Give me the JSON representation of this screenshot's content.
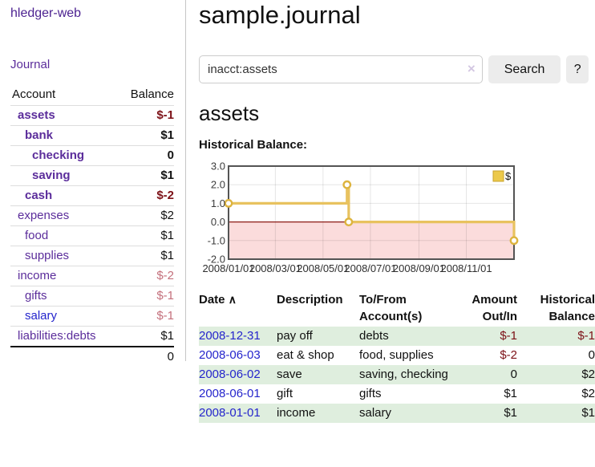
{
  "app": {
    "title": "hledger-web"
  },
  "sidebar": {
    "nav_journal": "Journal",
    "table": {
      "account_header": "Account",
      "balance_header": "Balance",
      "rows": [
        {
          "account": "assets",
          "balance": "$-1"
        },
        {
          "account": "bank",
          "balance": "$1"
        },
        {
          "account": "checking",
          "balance": "0"
        },
        {
          "account": "saving",
          "balance": "$1"
        },
        {
          "account": "cash",
          "balance": "$-2"
        },
        {
          "account": "expenses",
          "balance": "$2"
        },
        {
          "account": "food",
          "balance": "$1"
        },
        {
          "account": "supplies",
          "balance": "$1"
        },
        {
          "account": "income",
          "balance": "$-2"
        },
        {
          "account": "gifts",
          "balance": "$-1"
        },
        {
          "account": "salary",
          "balance": "$-1"
        },
        {
          "account": "liabilities:debts",
          "balance": "$1"
        }
      ],
      "total": "0"
    }
  },
  "main": {
    "title": "sample.journal",
    "search": {
      "value": "inacct:assets",
      "clear_icon": "×",
      "search_button": "Search",
      "help_button": "?"
    },
    "account_heading": "assets",
    "chart_heading": "Historical Balance:"
  },
  "chart_data": {
    "type": "line",
    "step": true,
    "title": "Historical Balance:",
    "ylim": [
      -2,
      3
    ],
    "yticks": [
      {
        "v": 3,
        "label": "3.0"
      },
      {
        "v": 2,
        "label": "2.0"
      },
      {
        "v": 1,
        "label": "1.0"
      },
      {
        "v": 0,
        "label": "0.0"
      },
      {
        "v": -1,
        "label": "-1.0"
      },
      {
        "v": -2,
        "label": "-2.0"
      }
    ],
    "xticks": [
      {
        "f": 0,
        "label": "2008/01/01"
      },
      {
        "f": 0.164,
        "label": "2008/03/01"
      },
      {
        "f": 0.331,
        "label": "2008/05/01"
      },
      {
        "f": 0.497,
        "label": "2008/07/01"
      },
      {
        "f": 0.667,
        "label": "2008/09/01"
      },
      {
        "f": 0.833,
        "label": "2008/11/01"
      }
    ],
    "series": [
      {
        "name": "$",
        "points": [
          {
            "date": "2008-01-01",
            "f": 0,
            "v": 1
          },
          {
            "date": "2008-06-01",
            "f": 0.415,
            "v": 2
          },
          {
            "date": "2008-06-03",
            "f": 0.421,
            "v": 0
          },
          {
            "date": "2008-12-31",
            "f": 1,
            "v": -1
          }
        ]
      }
    ],
    "legend": {
      "position": "top-right",
      "label": "$"
    },
    "colors": {
      "line": "#e8c25f",
      "marker_ring": "#ddb43f",
      "negative_fill": "#fbdcdc",
      "zero_line": "#8c1a15",
      "border": "#545454",
      "grid": "rgba(0,0,0,0.10)",
      "legend_swatch": "#ecc94b",
      "legend_swatch_border": "#c9a32e"
    }
  },
  "register": {
    "headers": {
      "date": "Date",
      "sort_icon": "∧",
      "description": "Description",
      "account": "To/From Account(s)",
      "amount": "Amount Out/In",
      "balance": "Historical Balance"
    },
    "rows": [
      {
        "date": "2008-12-31",
        "description": "pay off",
        "account": "debts",
        "amount": "$-1",
        "balance": "$-1"
      },
      {
        "date": "2008-06-03",
        "description": "eat & shop",
        "account": "food, supplies",
        "amount": "$-2",
        "balance": "0"
      },
      {
        "date": "2008-06-02",
        "description": "save",
        "account": "saving, checking",
        "amount": "0",
        "balance": "$2"
      },
      {
        "date": "2008-06-01",
        "description": "gift",
        "account": "gifts",
        "amount": "$1",
        "balance": "$2"
      },
      {
        "date": "2008-01-01",
        "description": "income",
        "account": "salary",
        "amount": "$1",
        "balance": "$1"
      }
    ]
  }
}
